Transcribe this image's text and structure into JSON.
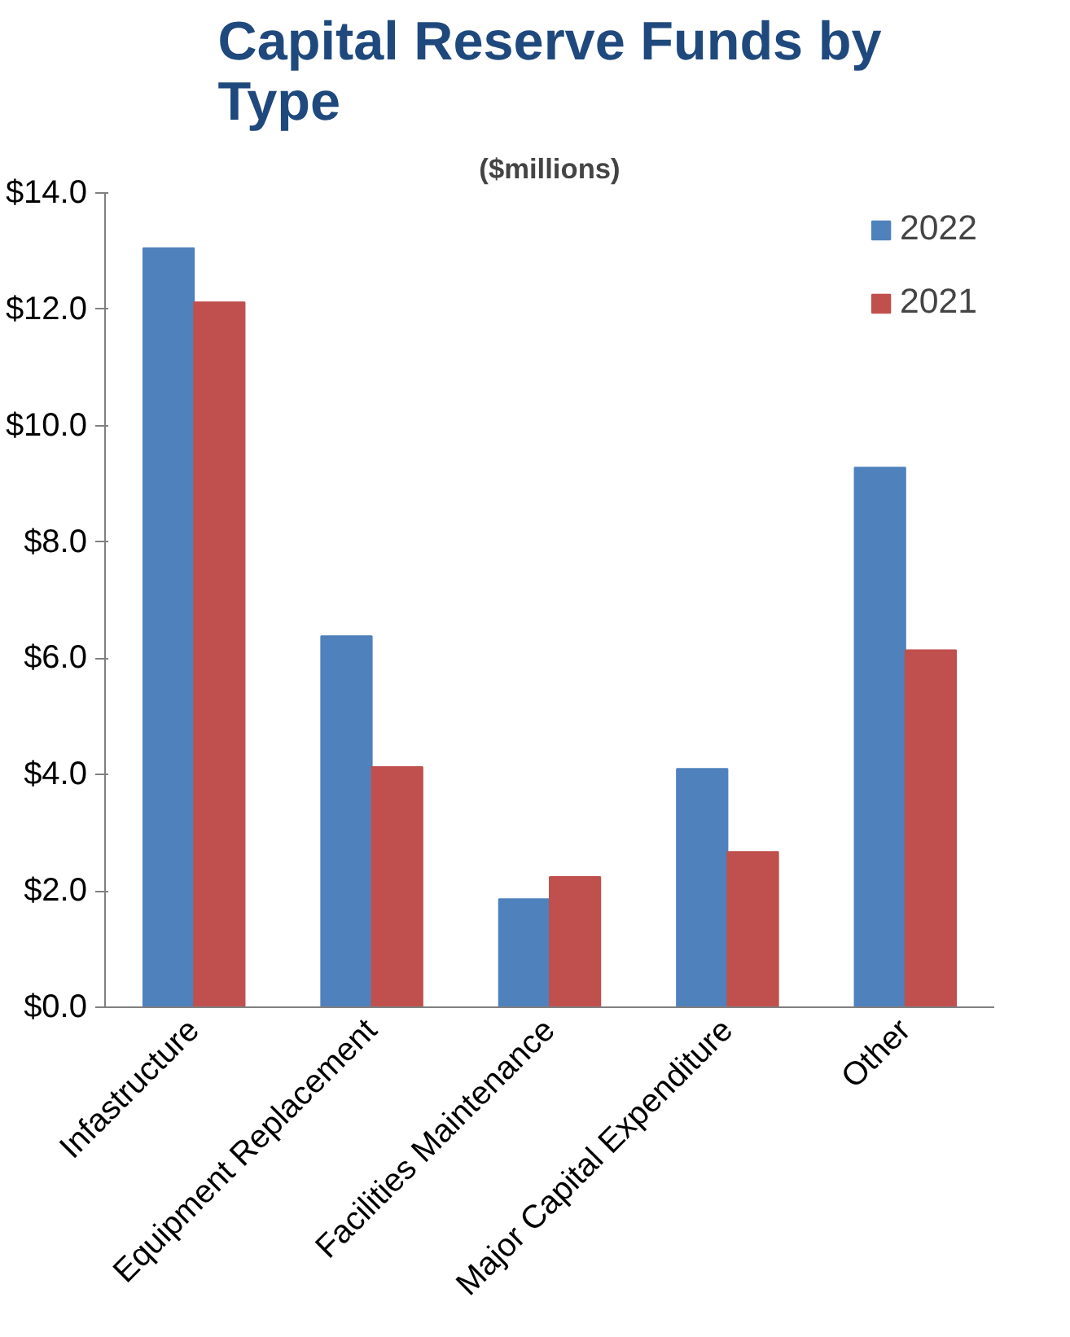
{
  "chart_data": {
    "type": "bar",
    "title": "Capital Reserve Funds by Type",
    "subtitle": "($millions)",
    "categories": [
      "Infastructure",
      "Equipment Replacement",
      "Facilities Maintenance",
      "Major Capital Expenditure",
      "Other"
    ],
    "series": [
      {
        "name": "2022",
        "color": "#4f81bd",
        "values": [
          13.05,
          6.38,
          1.86,
          4.1,
          9.28
        ]
      },
      {
        "name": "2021",
        "color": "#c0504d",
        "values": [
          12.12,
          4.13,
          2.24,
          2.67,
          6.14
        ]
      }
    ],
    "ylim": [
      0,
      14
    ],
    "yticks": [
      {
        "value": 0,
        "label": "$0.0"
      },
      {
        "value": 2,
        "label": "$2.0"
      },
      {
        "value": 4,
        "label": "$4.0"
      },
      {
        "value": 6,
        "label": "$6.0"
      },
      {
        "value": 8,
        "label": "$8.0"
      },
      {
        "value": 10,
        "label": "$10.0"
      },
      {
        "value": 12,
        "label": "$12.0"
      },
      {
        "value": 14,
        "label": "$14.0"
      }
    ],
    "grid": false,
    "legend": "top right"
  }
}
